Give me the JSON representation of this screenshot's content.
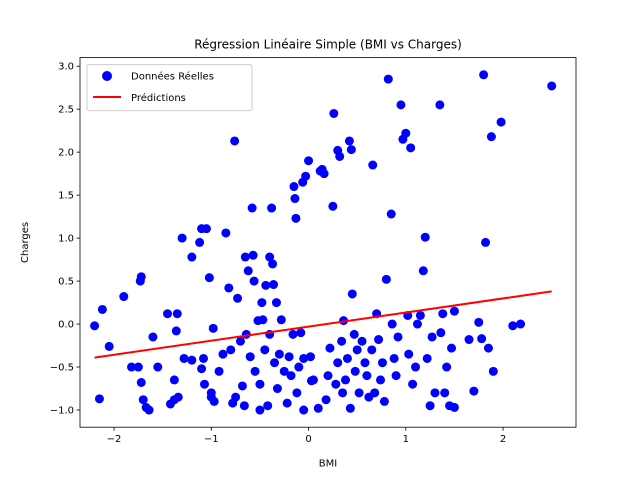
{
  "chart_data": {
    "type": "scatter",
    "title": "Régression Linéaire Simple (BMI vs Charges)",
    "xlabel": "BMI",
    "ylabel": "Charges",
    "xlim": [
      -2.35,
      2.75
    ],
    "ylim": [
      -1.2,
      3.1
    ],
    "xticks": [
      -2,
      -1,
      0,
      1,
      2
    ],
    "yticks": [
      -1.0,
      -0.5,
      0.0,
      0.5,
      1.0,
      1.5,
      2.0,
      2.5,
      3.0
    ],
    "xtick_labels": [
      "−2",
      "−1",
      "0",
      "1",
      "2"
    ],
    "ytick_labels": [
      "−1.0",
      "−0.5",
      "0.0",
      "0.5",
      "1.0",
      "1.5",
      "2.0",
      "2.5",
      "3.0"
    ],
    "grid": false,
    "legend_position": "upper-left",
    "series": [
      {
        "name": "Données Réelles",
        "kind": "scatter",
        "color": "#0000ff",
        "points": [
          [
            -2.2,
            -0.02
          ],
          [
            -2.12,
            0.17
          ],
          [
            -2.15,
            -0.87
          ],
          [
            -2.05,
            -0.26
          ],
          [
            -1.9,
            0.32
          ],
          [
            -1.82,
            -0.5
          ],
          [
            -1.75,
            -0.5
          ],
          [
            -1.72,
            0.55
          ],
          [
            -1.73,
            0.5
          ],
          [
            -1.72,
            -0.68
          ],
          [
            -1.7,
            -0.88
          ],
          [
            -1.67,
            -0.97
          ],
          [
            -1.64,
            -1.0
          ],
          [
            -1.6,
            -0.15
          ],
          [
            -1.55,
            -0.5
          ],
          [
            -1.45,
            0.12
          ],
          [
            -1.42,
            -0.93
          ],
          [
            -1.38,
            -0.65
          ],
          [
            -1.36,
            -0.08
          ],
          [
            -1.35,
            0.12
          ],
          [
            -1.38,
            -0.88
          ],
          [
            -1.34,
            -0.85
          ],
          [
            -1.3,
            1.0
          ],
          [
            -1.28,
            -0.4
          ],
          [
            -1.2,
            -0.42
          ],
          [
            -1.2,
            0.78
          ],
          [
            -1.12,
            0.95
          ],
          [
            -1.1,
            1.11
          ],
          [
            -1.08,
            -0.4
          ],
          [
            -1.07,
            -0.7
          ],
          [
            -1.1,
            -0.52
          ],
          [
            -1.05,
            1.11
          ],
          [
            -1.02,
            0.54
          ],
          [
            -1.0,
            -0.8
          ],
          [
            -0.98,
            -0.05
          ],
          [
            -0.97,
            -0.9
          ],
          [
            -1.0,
            -0.85
          ],
          [
            -0.92,
            -0.55
          ],
          [
            -0.88,
            -0.35
          ],
          [
            -0.85,
            1.06
          ],
          [
            -0.82,
            0.42
          ],
          [
            -0.8,
            -0.3
          ],
          [
            -0.78,
            -0.92
          ],
          [
            -0.76,
            2.13
          ],
          [
            -0.75,
            -0.85
          ],
          [
            -0.73,
            0.3
          ],
          [
            -0.7,
            -0.2
          ],
          [
            -0.68,
            -0.72
          ],
          [
            -0.66,
            -0.95
          ],
          [
            -0.65,
            0.78
          ],
          [
            -0.64,
            -0.12
          ],
          [
            -0.62,
            0.62
          ],
          [
            -0.6,
            -0.38
          ],
          [
            -0.58,
            1.35
          ],
          [
            -0.57,
            0.8
          ],
          [
            -0.56,
            0.5
          ],
          [
            -0.55,
            -0.55
          ],
          [
            -0.52,
            0.04
          ],
          [
            -0.5,
            -0.7
          ],
          [
            -0.5,
            -1.0
          ],
          [
            -0.48,
            0.25
          ],
          [
            -0.47,
            0.05
          ],
          [
            -0.45,
            -0.3
          ],
          [
            -0.44,
            0.45
          ],
          [
            -0.42,
            -0.95
          ],
          [
            -0.4,
            -0.12
          ],
          [
            -0.4,
            0.78
          ],
          [
            -0.38,
            1.35
          ],
          [
            -0.37,
            0.7
          ],
          [
            -0.36,
            0.46
          ],
          [
            -0.35,
            -0.45
          ],
          [
            -0.33,
            0.25
          ],
          [
            -0.32,
            -0.75
          ],
          [
            -0.3,
            -0.35
          ],
          [
            -0.28,
            0.05
          ],
          [
            -0.25,
            -0.55
          ],
          [
            -0.22,
            -0.92
          ],
          [
            -0.2,
            -0.38
          ],
          [
            -0.18,
            -0.6
          ],
          [
            -0.16,
            -0.12
          ],
          [
            -0.15,
            1.6
          ],
          [
            -0.14,
            1.46
          ],
          [
            -0.13,
            1.23
          ],
          [
            -0.12,
            -0.8
          ],
          [
            -0.1,
            -0.5
          ],
          [
            -0.08,
            -0.1
          ],
          [
            -0.06,
            1.65
          ],
          [
            -0.05,
            -0.4
          ],
          [
            -0.05,
            -1.0
          ],
          [
            -0.03,
            1.72
          ],
          [
            0.0,
            1.9
          ],
          [
            0.02,
            -0.38
          ],
          [
            0.03,
            -0.66
          ],
          [
            0.05,
            -0.65
          ],
          [
            0.1,
            -0.98
          ],
          [
            0.12,
            1.78
          ],
          [
            0.14,
            1.8
          ],
          [
            0.16,
            1.75
          ],
          [
            0.18,
            -0.88
          ],
          [
            0.2,
            -0.6
          ],
          [
            0.22,
            -0.28
          ],
          [
            0.25,
            1.37
          ],
          [
            0.26,
            2.45
          ],
          [
            0.28,
            -0.7
          ],
          [
            0.3,
            -0.45
          ],
          [
            0.3,
            2.02
          ],
          [
            0.32,
            1.95
          ],
          [
            0.34,
            -0.2
          ],
          [
            0.35,
            -0.8
          ],
          [
            0.36,
            0.04
          ],
          [
            0.38,
            -0.65
          ],
          [
            0.4,
            -0.4
          ],
          [
            0.42,
            2.13
          ],
          [
            0.43,
            -0.98
          ],
          [
            0.44,
            2.03
          ],
          [
            0.45,
            0.35
          ],
          [
            0.47,
            -0.12
          ],
          [
            0.48,
            -0.55
          ],
          [
            0.5,
            -0.3
          ],
          [
            0.52,
            -0.8
          ],
          [
            0.55,
            -0.2
          ],
          [
            0.58,
            -0.45
          ],
          [
            0.6,
            -0.6
          ],
          [
            0.62,
            -0.85
          ],
          [
            0.65,
            -0.3
          ],
          [
            0.66,
            1.85
          ],
          [
            0.68,
            -0.8
          ],
          [
            0.7,
            0.12
          ],
          [
            0.72,
            -0.18
          ],
          [
            0.74,
            -0.65
          ],
          [
            0.76,
            -0.45
          ],
          [
            0.78,
            -0.9
          ],
          [
            0.8,
            0.52
          ],
          [
            0.82,
            2.85
          ],
          [
            0.85,
            1.28
          ],
          [
            0.86,
            0.0
          ],
          [
            0.88,
            -0.4
          ],
          [
            0.9,
            -0.6
          ],
          [
            0.92,
            -0.15
          ],
          [
            0.95,
            2.55
          ],
          [
            0.97,
            2.15
          ],
          [
            1.0,
            2.22
          ],
          [
            1.02,
            0.1
          ],
          [
            1.03,
            -0.35
          ],
          [
            1.05,
            2.05
          ],
          [
            1.07,
            -0.7
          ],
          [
            1.1,
            -0.5
          ],
          [
            1.12,
            0.0
          ],
          [
            1.15,
            0.1
          ],
          [
            1.18,
            0.62
          ],
          [
            1.2,
            1.01
          ],
          [
            1.22,
            -0.4
          ],
          [
            1.25,
            -0.95
          ],
          [
            1.27,
            -0.15
          ],
          [
            1.3,
            -0.8
          ],
          [
            1.35,
            2.55
          ],
          [
            1.36,
            -0.1
          ],
          [
            1.38,
            0.12
          ],
          [
            1.4,
            -0.8
          ],
          [
            1.42,
            -0.5
          ],
          [
            1.45,
            -0.95
          ],
          [
            1.47,
            -0.28
          ],
          [
            1.5,
            0.15
          ],
          [
            1.5,
            -0.97
          ],
          [
            1.65,
            -0.18
          ],
          [
            1.7,
            -0.78
          ],
          [
            1.75,
            0.02
          ],
          [
            1.78,
            -0.17
          ],
          [
            1.8,
            2.9
          ],
          [
            1.82,
            0.95
          ],
          [
            1.85,
            -0.28
          ],
          [
            1.88,
            2.18
          ],
          [
            1.9,
            -0.55
          ],
          [
            1.98,
            2.35
          ],
          [
            2.1,
            -0.02
          ],
          [
            2.18,
            0.0
          ],
          [
            2.5,
            2.77
          ]
        ]
      },
      {
        "name": "Prédictions",
        "kind": "line",
        "color": "#ff0000",
        "points": [
          [
            -2.2,
            -0.39
          ],
          [
            2.5,
            0.38
          ]
        ]
      }
    ]
  }
}
